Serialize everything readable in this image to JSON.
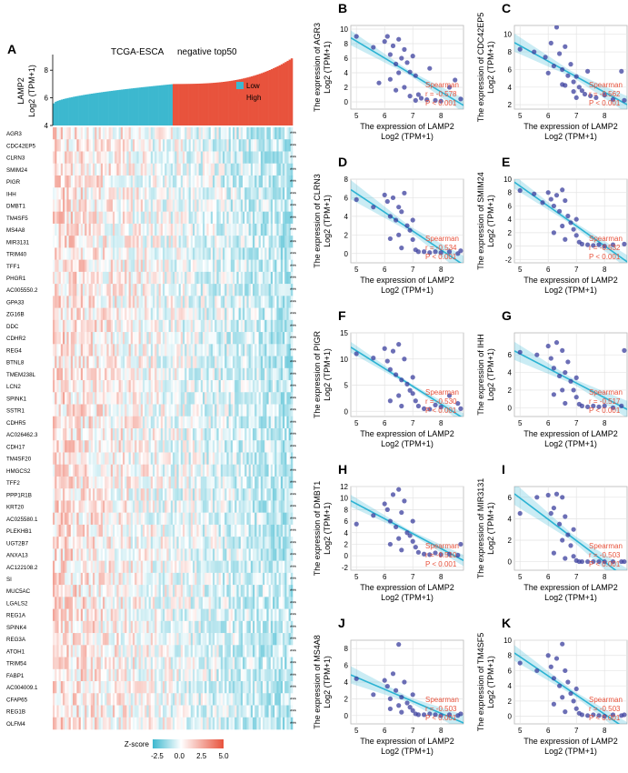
{
  "figure": {
    "panels_heatmap_letter": "A",
    "heatmap": {
      "title": "TCGA-ESCA",
      "subtitle": "negative top50",
      "bar_ylabel_line1": "LAMP2",
      "bar_ylabel_line2": "Log2 (TPM+1)",
      "bar_yticks": [
        "4",
        "6",
        "8"
      ],
      "legend": [
        {
          "label": "Low",
          "color": "#3db8cf"
        },
        {
          "label": "High",
          "color": "#e8533d"
        }
      ],
      "genes": [
        "AGR3",
        "CDC42EP5",
        "CLRN3",
        "SMIM24",
        "PIGR",
        "IHH",
        "DMBT1",
        "TM4SF5",
        "MS4A8",
        "MIR3131",
        "TRIM40",
        "TFF1",
        "PHGR1",
        "AC005550.2",
        "GPA33",
        "ZG16B",
        "DDC",
        "CDHR2",
        "REG4",
        "BTNL8",
        "TMEM238L",
        "LCN2",
        "SPINK1",
        "SSTR1",
        "CDHR5",
        "AC026462.3",
        "CDH17",
        "TM4SF20",
        "HMGCS2",
        "TFF2",
        "PPP1R1B",
        "KRT20",
        "AC025580.1",
        "PLEKHB1",
        "UGT2B7",
        "ANXA13",
        "AC122108.2",
        "SI",
        "MUC5AC",
        "LGALS2",
        "REG1A",
        "SPINK4",
        "REG3A",
        "ATOH1",
        "TRIM54",
        "FABP1",
        "AC004009.1",
        "CFAP65",
        "REG1B",
        "OLFM4"
      ],
      "significance": "***",
      "colorbar": {
        "label": "Z-score",
        "ticks": [
          "-2.5",
          "0.0",
          "2.5",
          "5.0"
        ],
        "low_color": "#3db8cf",
        "mid_color": "#ffffff",
        "high_color": "#e8533d"
      }
    },
    "scatter_common": {
      "xlabel_line1": "The expression of LAMP2",
      "xlabel_line2": "Log2 (TPM+1)",
      "ylabel_prefix": "The expression of",
      "ylabel_line2": "Log2 (TPM+1)",
      "stat_method": "Spearman",
      "p_text": "P < 0.001",
      "xticks": [
        "5",
        "6",
        "7",
        "8"
      ],
      "point_color": "#3b3f9e",
      "line_color": "#2bb3d3",
      "stat_color": "#e8533d"
    }
  },
  "chart_data": [
    {
      "type": "bar",
      "title": "TCGA-ESCA",
      "subtitle": "negative top50",
      "ylabel": "LAMP2 Log2 (TPM+1)",
      "ylim": [
        4,
        9
      ],
      "groups": [
        {
          "name": "Low",
          "range": [
            5.6,
            7.0
          ]
        },
        {
          "name": "High",
          "range": [
            7.0,
            9.0
          ]
        }
      ]
    },
    {
      "type": "scatter",
      "panel": "B",
      "gene": "AGR3",
      "r": "-0.578",
      "xlim": [
        4.8,
        8.8
      ],
      "ylim": [
        -1,
        10.5
      ],
      "yticks": [
        0,
        2,
        4,
        6,
        8,
        10
      ],
      "points": [
        [
          5.0,
          9.0
        ],
        [
          5.6,
          7.5
        ],
        [
          6.0,
          8.3
        ],
        [
          6.1,
          9.0
        ],
        [
          6.2,
          6.5
        ],
        [
          6.3,
          7.7
        ],
        [
          6.4,
          5.2
        ],
        [
          6.5,
          8.6
        ],
        [
          6.6,
          6.0
        ],
        [
          6.7,
          7.2
        ],
        [
          6.8,
          5.4
        ],
        [
          6.9,
          4.1
        ],
        [
          7.0,
          6.3
        ],
        [
          7.1,
          3.6
        ],
        [
          6.7,
          2.0
        ],
        [
          7.2,
          1.0
        ],
        [
          7.3,
          0.5
        ],
        [
          7.5,
          0.3
        ],
        [
          7.8,
          0.2
        ],
        [
          8.0,
          0.1
        ],
        [
          8.3,
          2.0
        ],
        [
          6.5,
          4.0
        ],
        [
          6.2,
          3.1
        ],
        [
          5.8,
          2.6
        ],
        [
          7.6,
          4.6
        ],
        [
          8.5,
          3.0
        ],
        [
          8.7,
          0.4
        ],
        [
          6.9,
          0.8
        ],
        [
          7.1,
          0.2
        ],
        [
          6.4,
          1.6
        ]
      ]
    },
    {
      "type": "scatter",
      "panel": "C",
      "gene": "CDC42EP5",
      "r": "-0.562",
      "xlim": [
        4.8,
        8.8
      ],
      "ylim": [
        1.5,
        11
      ],
      "yticks": [
        2,
        4,
        6,
        8,
        10
      ],
      "points": [
        [
          5.0,
          8.3
        ],
        [
          5.5,
          8.0
        ],
        [
          5.9,
          7.4
        ],
        [
          6.1,
          9.0
        ],
        [
          6.2,
          6.4
        ],
        [
          6.4,
          7.8
        ],
        [
          6.5,
          6.0
        ],
        [
          6.6,
          8.6
        ],
        [
          6.7,
          5.3
        ],
        [
          6.8,
          6.6
        ],
        [
          6.9,
          4.6
        ],
        [
          7.0,
          5.2
        ],
        [
          7.1,
          4.0
        ],
        [
          7.2,
          3.6
        ],
        [
          7.3,
          3.2
        ],
        [
          7.5,
          3.0
        ],
        [
          7.7,
          2.8
        ],
        [
          8.0,
          3.1
        ],
        [
          8.3,
          2.6
        ],
        [
          6.3,
          10.8
        ],
        [
          6.5,
          4.3
        ],
        [
          6.0,
          5.6
        ],
        [
          7.4,
          5.8
        ],
        [
          8.6,
          5.8
        ],
        [
          8.7,
          2.5
        ],
        [
          6.9,
          3.5
        ],
        [
          7.0,
          2.8
        ],
        [
          6.6,
          4.2
        ]
      ]
    },
    {
      "type": "scatter",
      "panel": "D",
      "gene": "CLRN3",
      "r": "-0.534",
      "xlim": [
        4.8,
        8.8
      ],
      "ylim": [
        -1,
        8
      ],
      "yticks": [
        0,
        2,
        4,
        6,
        8
      ],
      "points": [
        [
          5.0,
          5.8
        ],
        [
          5.6,
          5.0
        ],
        [
          6.0,
          6.3
        ],
        [
          6.1,
          5.6
        ],
        [
          6.2,
          4.0
        ],
        [
          6.3,
          6.0
        ],
        [
          6.4,
          3.6
        ],
        [
          6.5,
          5.0
        ],
        [
          6.6,
          4.5
        ],
        [
          6.7,
          6.5
        ],
        [
          6.8,
          3.0
        ],
        [
          6.9,
          2.5
        ],
        [
          7.0,
          1.5
        ],
        [
          7.1,
          0.4
        ],
        [
          7.2,
          0.2
        ],
        [
          7.4,
          0.2
        ],
        [
          7.6,
          0.1
        ],
        [
          7.8,
          0.2
        ],
        [
          8.0,
          0.1
        ],
        [
          8.3,
          0.2
        ],
        [
          8.6,
          0.0
        ],
        [
          6.5,
          2.0
        ],
        [
          6.2,
          1.6
        ],
        [
          7.0,
          3.6
        ],
        [
          8.7,
          0.3
        ],
        [
          6.6,
          0.6
        ]
      ]
    },
    {
      "type": "scatter",
      "panel": "E",
      "gene": "SMIM24",
      "r": "-0.532",
      "xlim": [
        4.8,
        8.8
      ],
      "ylim": [
        -2.5,
        10
      ],
      "yticks": [
        -2,
        0,
        2,
        4,
        6,
        8,
        10
      ],
      "points": [
        [
          5.0,
          8.3
        ],
        [
          5.5,
          7.8
        ],
        [
          6.0,
          8.0
        ],
        [
          6.1,
          7.0
        ],
        [
          6.2,
          6.0
        ],
        [
          6.3,
          7.6
        ],
        [
          6.4,
          5.2
        ],
        [
          6.5,
          8.4
        ],
        [
          6.6,
          6.8
        ],
        [
          6.7,
          4.5
        ],
        [
          6.8,
          3.5
        ],
        [
          6.9,
          2.5
        ],
        [
          7.0,
          1.6
        ],
        [
          7.1,
          0.6
        ],
        [
          7.2,
          0.3
        ],
        [
          7.4,
          0.2
        ],
        [
          7.6,
          0.1
        ],
        [
          7.8,
          0.2
        ],
        [
          8.0,
          0.0
        ],
        [
          8.3,
          0.2
        ],
        [
          6.5,
          3.0
        ],
        [
          6.2,
          2.0
        ],
        [
          7.0,
          4.0
        ],
        [
          8.7,
          0.3
        ],
        [
          6.6,
          1.0
        ],
        [
          5.8,
          6.5
        ]
      ]
    },
    {
      "type": "scatter",
      "panel": "F",
      "gene": "PIGR",
      "r": "-0.530",
      "xlim": [
        4.8,
        8.8
      ],
      "ylim": [
        -1,
        15
      ],
      "yticks": [
        0,
        5,
        10,
        15
      ],
      "points": [
        [
          5.0,
          11.0
        ],
        [
          5.6,
          10.2
        ],
        [
          6.0,
          12.0
        ],
        [
          6.1,
          9.6
        ],
        [
          6.2,
          8.0
        ],
        [
          6.3,
          11.5
        ],
        [
          6.4,
          7.0
        ],
        [
          6.5,
          12.8
        ],
        [
          6.6,
          6.0
        ],
        [
          6.7,
          10.0
        ],
        [
          6.8,
          5.2
        ],
        [
          6.9,
          4.0
        ],
        [
          7.0,
          3.4
        ],
        [
          7.1,
          2.0
        ],
        [
          7.2,
          1.0
        ],
        [
          7.4,
          0.5
        ],
        [
          7.6,
          0.4
        ],
        [
          7.8,
          1.2
        ],
        [
          8.0,
          0.8
        ],
        [
          8.3,
          3.0
        ],
        [
          8.6,
          1.5
        ],
        [
          6.5,
          3.0
        ],
        [
          6.2,
          2.0
        ],
        [
          7.0,
          6.5
        ],
        [
          8.7,
          0.5
        ],
        [
          6.6,
          1.0
        ]
      ]
    },
    {
      "type": "scatter",
      "panel": "G",
      "gene": "IHH",
      "r": "-0.517",
      "xlim": [
        4.8,
        8.8
      ],
      "ylim": [
        -1,
        8.5
      ],
      "yticks": [
        0,
        2,
        4,
        6
      ],
      "points": [
        [
          5.0,
          6.3
        ],
        [
          5.6,
          6.0
        ],
        [
          6.0,
          7.0
        ],
        [
          6.1,
          5.6
        ],
        [
          6.2,
          4.5
        ],
        [
          6.3,
          7.4
        ],
        [
          6.4,
          3.6
        ],
        [
          6.5,
          6.5
        ],
        [
          6.6,
          4.0
        ],
        [
          6.7,
          5.2
        ],
        [
          6.8,
          3.0
        ],
        [
          6.9,
          2.0
        ],
        [
          7.0,
          1.2
        ],
        [
          7.1,
          0.4
        ],
        [
          7.2,
          0.2
        ],
        [
          7.4,
          0.1
        ],
        [
          7.6,
          0.2
        ],
        [
          7.8,
          0.1
        ],
        [
          8.0,
          0.2
        ],
        [
          8.3,
          0.0
        ],
        [
          8.6,
          0.2
        ],
        [
          6.5,
          2.0
        ],
        [
          6.2,
          1.5
        ],
        [
          7.0,
          3.4
        ],
        [
          8.7,
          6.5
        ],
        [
          6.6,
          0.5
        ]
      ]
    },
    {
      "type": "scatter",
      "panel": "H",
      "gene": "DMBT1",
      "r": "-0.510",
      "xlim": [
        4.8,
        8.8
      ],
      "ylim": [
        -2.5,
        12
      ],
      "yticks": [
        -2,
        0,
        2,
        4,
        6,
        8,
        10,
        12
      ],
      "points": [
        [
          5.0,
          5.5
        ],
        [
          5.6,
          7.0
        ],
        [
          6.0,
          9.0
        ],
        [
          6.1,
          8.0
        ],
        [
          6.2,
          6.0
        ],
        [
          6.3,
          10.6
        ],
        [
          6.4,
          5.0
        ],
        [
          6.5,
          11.5
        ],
        [
          6.6,
          7.5
        ],
        [
          6.7,
          9.5
        ],
        [
          6.8,
          4.0
        ],
        [
          6.9,
          3.5
        ],
        [
          7.0,
          2.5
        ],
        [
          7.1,
          1.5
        ],
        [
          7.2,
          0.6
        ],
        [
          7.4,
          0.3
        ],
        [
          7.6,
          0.2
        ],
        [
          7.8,
          0.5
        ],
        [
          8.0,
          0.2
        ],
        [
          8.3,
          0.3
        ],
        [
          8.6,
          0.1
        ],
        [
          6.5,
          3.0
        ],
        [
          6.2,
          2.0
        ],
        [
          7.0,
          6.0
        ],
        [
          8.7,
          2.0
        ],
        [
          6.6,
          1.0
        ]
      ]
    },
    {
      "type": "scatter",
      "panel": "I",
      "gene": "MIR3131",
      "r": "-0.503",
      "xlim": [
        4.8,
        8.8
      ],
      "ylim": [
        -0.8,
        7
      ],
      "yticks": [
        0,
        2,
        4,
        6
      ],
      "points": [
        [
          5.0,
          4.5
        ],
        [
          5.6,
          6.0
        ],
        [
          6.0,
          6.2
        ],
        [
          6.1,
          4.5
        ],
        [
          6.2,
          5.0
        ],
        [
          6.3,
          6.3
        ],
        [
          6.4,
          3.5
        ],
        [
          6.5,
          6.0
        ],
        [
          6.6,
          4.2
        ],
        [
          6.7,
          2.5
        ],
        [
          6.8,
          1.5
        ],
        [
          6.9,
          0.5
        ],
        [
          7.0,
          0.1
        ],
        [
          7.1,
          0.0
        ],
        [
          7.2,
          0.0
        ],
        [
          7.4,
          0.0
        ],
        [
          7.6,
          0.0
        ],
        [
          7.8,
          0.0
        ],
        [
          8.0,
          0.0
        ],
        [
          8.3,
          0.0
        ],
        [
          8.6,
          0.0
        ],
        [
          6.5,
          2.0
        ],
        [
          6.2,
          0.8
        ],
        [
          6.9,
          3.0
        ],
        [
          8.7,
          0.0
        ],
        [
          6.6,
          0.3
        ]
      ]
    },
    {
      "type": "scatter",
      "panel": "J",
      "gene": "MS4A8",
      "r": "-0.503",
      "xlim": [
        4.8,
        8.8
      ],
      "ylim": [
        -1,
        9
      ],
      "yticks": [
        0,
        2,
        4,
        6,
        8
      ],
      "points": [
        [
          5.0,
          4.4
        ],
        [
          5.6,
          2.5
        ],
        [
          6.0,
          4.2
        ],
        [
          6.1,
          3.5
        ],
        [
          6.2,
          2.0
        ],
        [
          6.3,
          5.0
        ],
        [
          6.4,
          3.0
        ],
        [
          6.5,
          8.5
        ],
        [
          6.6,
          2.2
        ],
        [
          6.7,
          4.0
        ],
        [
          6.8,
          1.5
        ],
        [
          6.9,
          1.0
        ],
        [
          7.0,
          0.6
        ],
        [
          7.1,
          0.2
        ],
        [
          7.2,
          0.1
        ],
        [
          7.4,
          0.1
        ],
        [
          7.6,
          0.2
        ],
        [
          7.8,
          0.1
        ],
        [
          8.0,
          0.0
        ],
        [
          8.3,
          0.1
        ],
        [
          8.6,
          0.0
        ],
        [
          6.5,
          1.2
        ],
        [
          6.2,
          0.8
        ],
        [
          7.0,
          2.5
        ],
        [
          8.7,
          0.2
        ],
        [
          6.6,
          0.4
        ]
      ]
    },
    {
      "type": "scatter",
      "panel": "K",
      "gene": "TM4SF5",
      "r": "-0.503",
      "xlim": [
        4.8,
        8.8
      ],
      "ylim": [
        -1,
        10
      ],
      "yticks": [
        0,
        2,
        4,
        6,
        8,
        10
      ],
      "points": [
        [
          5.0,
          7.0
        ],
        [
          5.6,
          6.0
        ],
        [
          6.0,
          8.0
        ],
        [
          6.1,
          6.5
        ],
        [
          6.2,
          5.0
        ],
        [
          6.3,
          7.6
        ],
        [
          6.4,
          4.0
        ],
        [
          6.5,
          9.5
        ],
        [
          6.6,
          6.0
        ],
        [
          6.7,
          4.5
        ],
        [
          6.8,
          3.0
        ],
        [
          6.9,
          2.0
        ],
        [
          7.0,
          1.0
        ],
        [
          7.1,
          0.4
        ],
        [
          7.2,
          0.2
        ],
        [
          7.4,
          0.1
        ],
        [
          7.6,
          0.2
        ],
        [
          7.8,
          0.1
        ],
        [
          8.0,
          0.0
        ],
        [
          8.3,
          0.2
        ],
        [
          8.6,
          0.1
        ],
        [
          6.5,
          2.5
        ],
        [
          6.2,
          1.6
        ],
        [
          7.0,
          3.6
        ],
        [
          8.7,
          0.2
        ],
        [
          6.6,
          0.6
        ]
      ]
    }
  ]
}
